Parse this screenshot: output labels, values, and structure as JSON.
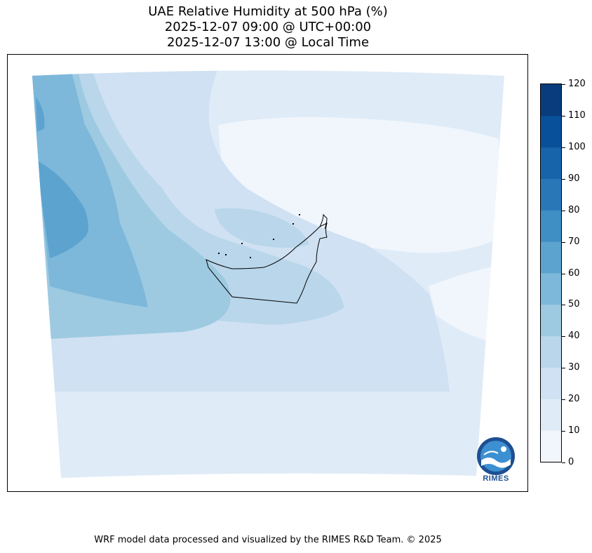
{
  "title": {
    "line1": "UAE Relative Humidity at 500 hPa (%)",
    "line2": "2025-12-07 09:00 @ UTC+00:00",
    "line3": "2025-12-07 13:00 @ Local Time"
  },
  "colorbar": {
    "ticks": [
      "0",
      "10",
      "20",
      "30",
      "40",
      "50",
      "60",
      "70",
      "80",
      "90",
      "100",
      "110",
      "120"
    ],
    "levels": [
      0,
      10,
      20,
      30,
      40,
      50,
      60,
      70,
      80,
      90,
      100,
      110,
      120
    ],
    "colors": [
      "#f0f6fc",
      "#dfebf7",
      "#cfe1f2",
      "#b9d6ea",
      "#9dcae1",
      "#7db8da",
      "#5da3d0",
      "#3f8ec4",
      "#2a77b8",
      "#1864aa",
      "#09509a",
      "#083c7d"
    ]
  },
  "map": {
    "variable": "Relative Humidity at 500 hPa",
    "units": "%",
    "region": "UAE",
    "band_levels_percent": [
      10,
      20,
      30,
      40,
      50,
      60,
      70
    ],
    "outline_color": "#000000"
  },
  "logo": {
    "text": "RIMES",
    "colors": [
      "#1d4f91",
      "#3c8fd0",
      "#ffffff"
    ]
  },
  "footer": {
    "credit": "WRF model data processed and visualized by the RIMES R&D Team. © 2025"
  }
}
